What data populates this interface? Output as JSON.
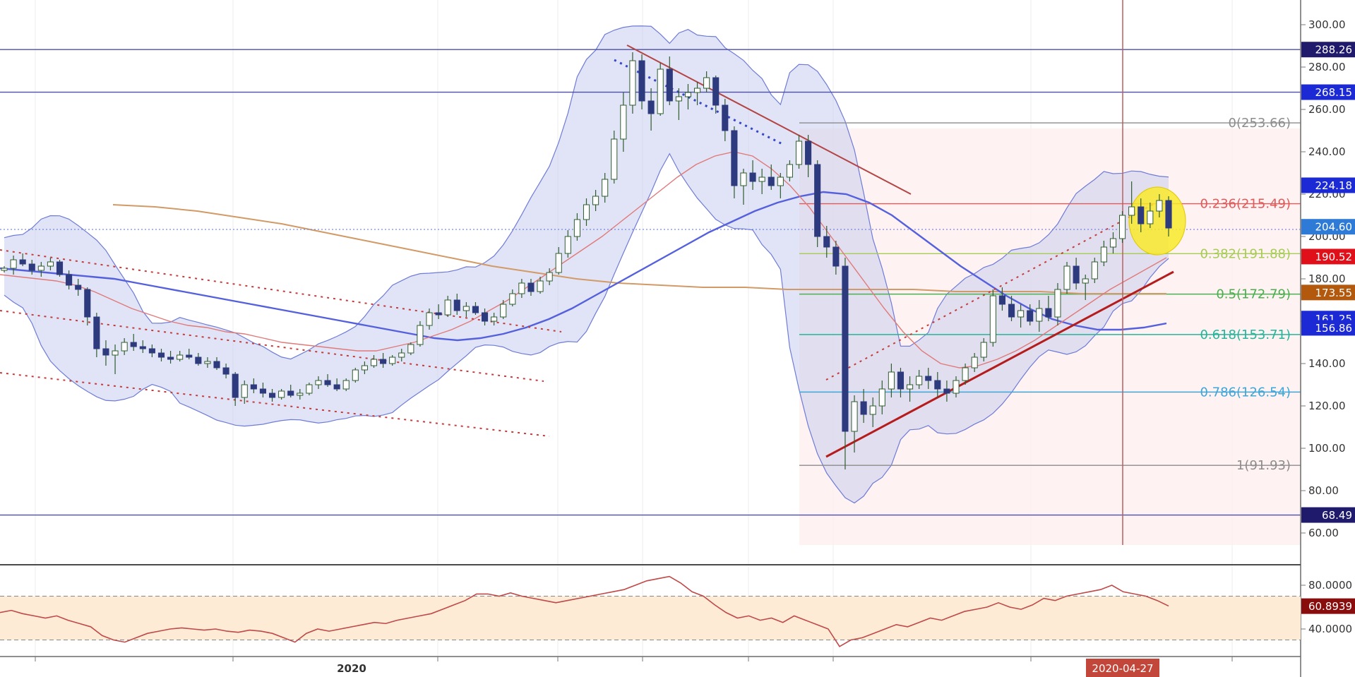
{
  "colors": {
    "up": "#ffffff",
    "down": "#2e3a7e",
    "wick": "#2f5c2f",
    "bb_fill": "#c9cdee",
    "bb_line": "#6f7cd6",
    "ma_fast": "#e07a7a",
    "ma_mid": "#5560dd",
    "ma_slow": "#d29a66",
    "rsi_line": "#c04848",
    "rsi_band": "#fdebd6",
    "fib_box": "#fdeaea",
    "highlight": "#f8ea2a"
  },
  "chart_data": {
    "type": "candlestick",
    "price_axis": {
      "ticks": [
        "300.00",
        "280.00",
        "260.00",
        "240.00",
        "220.00",
        "200.00",
        "180.00",
        "160.00",
        "140.00",
        "120.00",
        "100.00",
        "80.00",
        "60.00"
      ],
      "ylim": [
        55,
        310
      ]
    },
    "x_axis": {
      "labels": [
        "2020"
      ],
      "cursor_label": "2020-04-27"
    },
    "candles": [
      [
        184,
        186,
        183,
        185
      ],
      [
        185,
        191,
        182,
        189
      ],
      [
        189,
        192,
        186,
        187
      ],
      [
        187,
        189,
        182,
        184
      ],
      [
        184,
        188,
        181,
        186
      ],
      [
        186,
        190,
        184,
        188
      ],
      [
        188,
        189,
        181,
        182
      ],
      [
        182,
        184,
        175,
        177
      ],
      [
        177,
        180,
        172,
        175
      ],
      [
        175,
        176,
        158,
        162
      ],
      [
        162,
        164,
        143,
        147
      ],
      [
        147,
        151,
        139,
        144
      ],
      [
        144,
        149,
        135,
        146
      ],
      [
        146,
        152,
        144,
        150
      ],
      [
        150,
        154,
        146,
        148
      ],
      [
        148,
        151,
        145,
        147
      ],
      [
        147,
        149,
        143,
        145
      ],
      [
        145,
        147,
        141,
        143
      ],
      [
        143,
        146,
        140,
        142
      ],
      [
        142,
        146,
        141,
        144
      ],
      [
        144,
        147,
        142,
        143
      ],
      [
        143,
        145,
        139,
        140
      ],
      [
        140,
        143,
        138,
        141
      ],
      [
        141,
        143,
        137,
        138
      ],
      [
        138,
        140,
        133,
        135
      ],
      [
        135,
        136,
        120,
        124
      ],
      [
        124,
        132,
        121,
        130
      ],
      [
        130,
        133,
        126,
        128
      ],
      [
        128,
        131,
        124,
        126
      ],
      [
        126,
        128,
        122,
        124
      ],
      [
        124,
        128,
        123,
        127
      ],
      [
        127,
        130,
        124,
        125
      ],
      [
        125,
        128,
        123,
        126
      ],
      [
        126,
        131,
        125,
        130
      ],
      [
        130,
        134,
        128,
        132
      ],
      [
        132,
        135,
        129,
        130
      ],
      [
        130,
        133,
        127,
        128
      ],
      [
        128,
        133,
        127,
        132
      ],
      [
        132,
        138,
        131,
        137
      ],
      [
        137,
        141,
        135,
        139
      ],
      [
        139,
        144,
        138,
        142
      ],
      [
        142,
        145,
        138,
        140
      ],
      [
        140,
        144,
        139,
        143
      ],
      [
        143,
        147,
        141,
        145
      ],
      [
        145,
        150,
        144,
        149
      ],
      [
        149,
        160,
        148,
        158
      ],
      [
        158,
        166,
        156,
        164
      ],
      [
        164,
        168,
        161,
        163
      ],
      [
        163,
        172,
        162,
        170
      ],
      [
        170,
        173,
        163,
        165
      ],
      [
        165,
        169,
        162,
        167
      ],
      [
        167,
        169,
        163,
        164
      ],
      [
        164,
        166,
        158,
        160
      ],
      [
        160,
        164,
        158,
        162
      ],
      [
        162,
        170,
        161,
        168
      ],
      [
        168,
        175,
        167,
        173
      ],
      [
        173,
        180,
        171,
        178
      ],
      [
        178,
        180,
        172,
        174
      ],
      [
        174,
        181,
        173,
        179
      ],
      [
        179,
        185,
        177,
        183
      ],
      [
        183,
        195,
        182,
        192
      ],
      [
        192,
        203,
        190,
        200
      ],
      [
        200,
        211,
        198,
        208
      ],
      [
        208,
        218,
        205,
        215
      ],
      [
        215,
        222,
        212,
        219
      ],
      [
        219,
        230,
        216,
        227
      ],
      [
        227,
        250,
        225,
        246
      ],
      [
        246,
        268,
        240,
        262
      ],
      [
        262,
        287,
        258,
        283
      ],
      [
        283,
        286,
        260,
        264
      ],
      [
        264,
        270,
        250,
        258
      ],
      [
        258,
        282,
        257,
        279
      ],
      [
        279,
        285,
        262,
        264
      ],
      [
        264,
        270,
        255,
        266
      ],
      [
        266,
        272,
        260,
        268
      ],
      [
        268,
        273,
        262,
        270
      ],
      [
        270,
        278,
        268,
        275
      ],
      [
        275,
        276,
        258,
        262
      ],
      [
        262,
        265,
        245,
        250
      ],
      [
        250,
        252,
        218,
        224
      ],
      [
        224,
        232,
        215,
        230
      ],
      [
        230,
        236,
        222,
        226
      ],
      [
        226,
        232,
        220,
        228
      ],
      [
        228,
        234,
        222,
        224
      ],
      [
        224,
        230,
        218,
        228
      ],
      [
        228,
        236,
        226,
        234
      ],
      [
        234,
        248,
        232,
        245
      ],
      [
        245,
        248,
        228,
        234
      ],
      [
        234,
        236,
        195,
        200
      ],
      [
        200,
        205,
        190,
        195
      ],
      [
        195,
        198,
        182,
        186
      ],
      [
        186,
        190,
        90,
        108
      ],
      [
        108,
        125,
        98,
        122
      ],
      [
        122,
        128,
        112,
        116
      ],
      [
        116,
        124,
        110,
        120
      ],
      [
        120,
        132,
        116,
        128
      ],
      [
        128,
        140,
        124,
        136
      ],
      [
        136,
        138,
        124,
        128
      ],
      [
        128,
        134,
        122,
        130
      ],
      [
        130,
        137,
        128,
        134
      ],
      [
        134,
        138,
        128,
        132
      ],
      [
        132,
        136,
        124,
        128
      ],
      [
        128,
        132,
        122,
        126
      ],
      [
        126,
        134,
        124,
        132
      ],
      [
        132,
        140,
        130,
        138
      ],
      [
        138,
        145,
        136,
        143
      ],
      [
        143,
        152,
        141,
        150
      ],
      [
        150,
        175,
        148,
        172
      ],
      [
        172,
        176,
        165,
        168
      ],
      [
        168,
        172,
        160,
        162
      ],
      [
        162,
        168,
        157,
        165
      ],
      [
        165,
        168,
        158,
        160
      ],
      [
        160,
        170,
        155,
        166
      ],
      [
        166,
        172,
        160,
        162
      ],
      [
        162,
        178,
        158,
        175
      ],
      [
        175,
        188,
        173,
        186
      ],
      [
        186,
        190,
        175,
        178
      ],
      [
        178,
        182,
        170,
        180
      ],
      [
        180,
        190,
        178,
        188
      ],
      [
        188,
        198,
        186,
        195
      ],
      [
        195,
        202,
        192,
        199
      ],
      [
        199,
        212,
        197,
        210
      ],
      [
        210,
        226,
        206,
        214
      ],
      [
        214,
        218,
        202,
        206
      ],
      [
        206,
        216,
        204,
        212
      ],
      [
        212,
        220,
        209,
        217
      ],
      [
        217,
        219,
        200,
        204
      ]
    ],
    "moving_averages": {
      "fast": [
        182,
        181,
        180,
        179,
        177,
        174,
        170,
        166,
        163,
        160,
        158,
        157,
        155,
        154,
        152,
        150,
        149,
        148,
        147,
        146,
        146,
        148,
        150,
        153,
        156,
        160,
        165,
        170,
        176,
        182,
        188,
        194,
        200,
        207,
        214,
        221,
        228,
        234,
        238,
        240,
        238,
        232,
        224,
        214,
        202,
        190,
        178,
        166,
        155,
        146,
        140,
        138,
        139,
        142,
        146,
        151,
        157,
        163,
        169,
        175,
        180,
        185,
        190
      ],
      "mid": [
        185,
        184,
        183,
        182,
        181,
        180,
        178,
        176,
        174,
        172,
        170,
        168,
        166,
        164,
        162,
        160,
        158,
        156,
        154,
        152,
        151,
        152,
        154,
        157,
        161,
        166,
        172,
        178,
        184,
        190,
        196,
        202,
        207,
        212,
        216,
        219,
        221,
        220,
        216,
        210,
        202,
        194,
        186,
        179,
        172,
        166,
        161,
        158,
        156,
        156,
        157,
        159
      ],
      "slow": [
        215,
        214,
        212,
        209,
        206,
        202,
        198,
        194,
        190,
        186,
        183,
        180,
        178,
        177,
        176,
        176,
        175,
        175,
        175,
        175,
        174,
        174,
        174,
        173,
        173,
        173
      ]
    },
    "horizontal_levels": [
      {
        "value": 288.26,
        "label": "288.26"
      },
      {
        "value": 268.15,
        "label": "268.15"
      },
      {
        "value": 68.49,
        "label": "68.49"
      }
    ],
    "fibonacci": [
      {
        "label": "0(253.66)",
        "value": 253.66,
        "color": "#8c8c8c"
      },
      {
        "label": "0.236(215.49)",
        "value": 215.49,
        "color": "#e05a5a"
      },
      {
        "label": "0.382(191.88)",
        "value": 191.88,
        "color": "#a6cc55"
      },
      {
        "label": "0.5(172.79)",
        "value": 172.79,
        "color": "#4caf50"
      },
      {
        "label": "0.618(153.71)",
        "value": 153.71,
        "color": "#26b59a"
      },
      {
        "label": "0.786(126.54)",
        "value": 126.54,
        "color": "#3fa6d8"
      },
      {
        "label": "1(91.93)",
        "value": 91.93,
        "color": "#8c8c8c"
      }
    ],
    "price_tags": [
      {
        "label": "288.26",
        "value": 288.26,
        "color": "#1f1a6b"
      },
      {
        "label": "268.15",
        "value": 268.15,
        "color": "#1c2ad6"
      },
      {
        "label": "224.18",
        "value": 224.18,
        "color": "#1c2ad6"
      },
      {
        "label": "204.60",
        "value": 204.6,
        "color": "#2d7bd6"
      },
      {
        "label": "190.52",
        "value": 190.52,
        "color": "#e0101a"
      },
      {
        "label": "173.55",
        "value": 173.55,
        "color": "#b2590e"
      },
      {
        "label": "161.25",
        "value": 161.25,
        "color": "#1c2ad6"
      },
      {
        "label": "156.86",
        "value": 156.86,
        "color": "#1c2ad6"
      },
      {
        "label": "68.49",
        "value": 68.49,
        "color": "#1f1a6b"
      }
    ],
    "rsi": {
      "ticks": [
        "80.0000",
        "40.0000"
      ],
      "ylim": [
        20,
        95
      ],
      "band": [
        70,
        30
      ],
      "current_label": "60.8939",
      "current_value": 60.89,
      "values": [
        55,
        57,
        54,
        52,
        50,
        52,
        48,
        45,
        42,
        34,
        30,
        28,
        32,
        36,
        38,
        40,
        41,
        40,
        39,
        40,
        38,
        37,
        39,
        38,
        36,
        32,
        28,
        36,
        40,
        38,
        40,
        42,
        44,
        46,
        45,
        48,
        50,
        52,
        54,
        58,
        62,
        66,
        72,
        72,
        70,
        73,
        70,
        68,
        66,
        64,
        66,
        68,
        70,
        72,
        74,
        76,
        80,
        84,
        86,
        88,
        82,
        74,
        70,
        62,
        55,
        50,
        52,
        48,
        50,
        46,
        52,
        48,
        44,
        40,
        24,
        30,
        32,
        36,
        40,
        44,
        42,
        46,
        50,
        48,
        52,
        56,
        58,
        60,
        64,
        60,
        58,
        62,
        68,
        66,
        70,
        72,
        74,
        76,
        80,
        74,
        72,
        70,
        66,
        61
      ]
    }
  }
}
